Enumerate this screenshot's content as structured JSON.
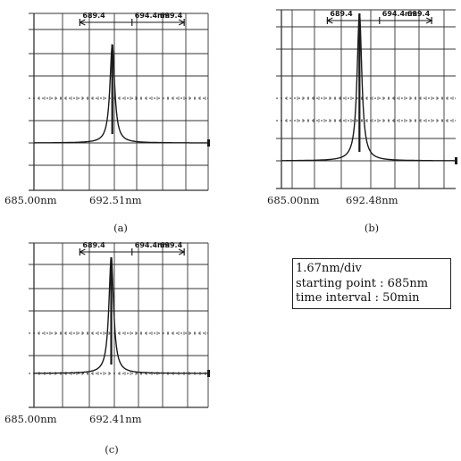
{
  "chart_data": [
    {
      "type": "line",
      "panel": "(a)",
      "x_axis_start_label": "685.00nm",
      "x_axis_peak_label": "692.51nm",
      "bracket_labels": [
        "689.4",
        "694.4nm",
        "699.4"
      ],
      "peak_nm": 692.51,
      "xlim": [
        685.0,
        701.7
      ],
      "units_per_division": "1.67nm/div",
      "grid": true
    },
    {
      "type": "line",
      "panel": "(b)",
      "x_axis_start_label": "685.00nm",
      "x_axis_peak_label": "692.48nm",
      "bracket_labels": [
        "689.4",
        "694.4nm",
        "699.4"
      ],
      "peak_nm": 692.48,
      "xlim": [
        685.0,
        701.7
      ],
      "units_per_division": "1.67nm/div",
      "grid": true
    },
    {
      "type": "line",
      "panel": "(c)",
      "x_axis_start_label": "685.00nm",
      "x_axis_peak_label": "692.41nm",
      "bracket_labels": [
        "689.4",
        "694.4nm",
        "699.4"
      ],
      "peak_nm": 692.41,
      "xlim": [
        685.0,
        701.7
      ],
      "units_per_division": "1.67nm/div",
      "grid": true
    }
  ],
  "info": {
    "line1": "1.67nm/div",
    "line2": "starting point : 685nm",
    "line3": "time interval : 50min"
  },
  "colors": {
    "ink": "#1a1a1a",
    "grid": "#333333",
    "background": "#ffffff"
  }
}
